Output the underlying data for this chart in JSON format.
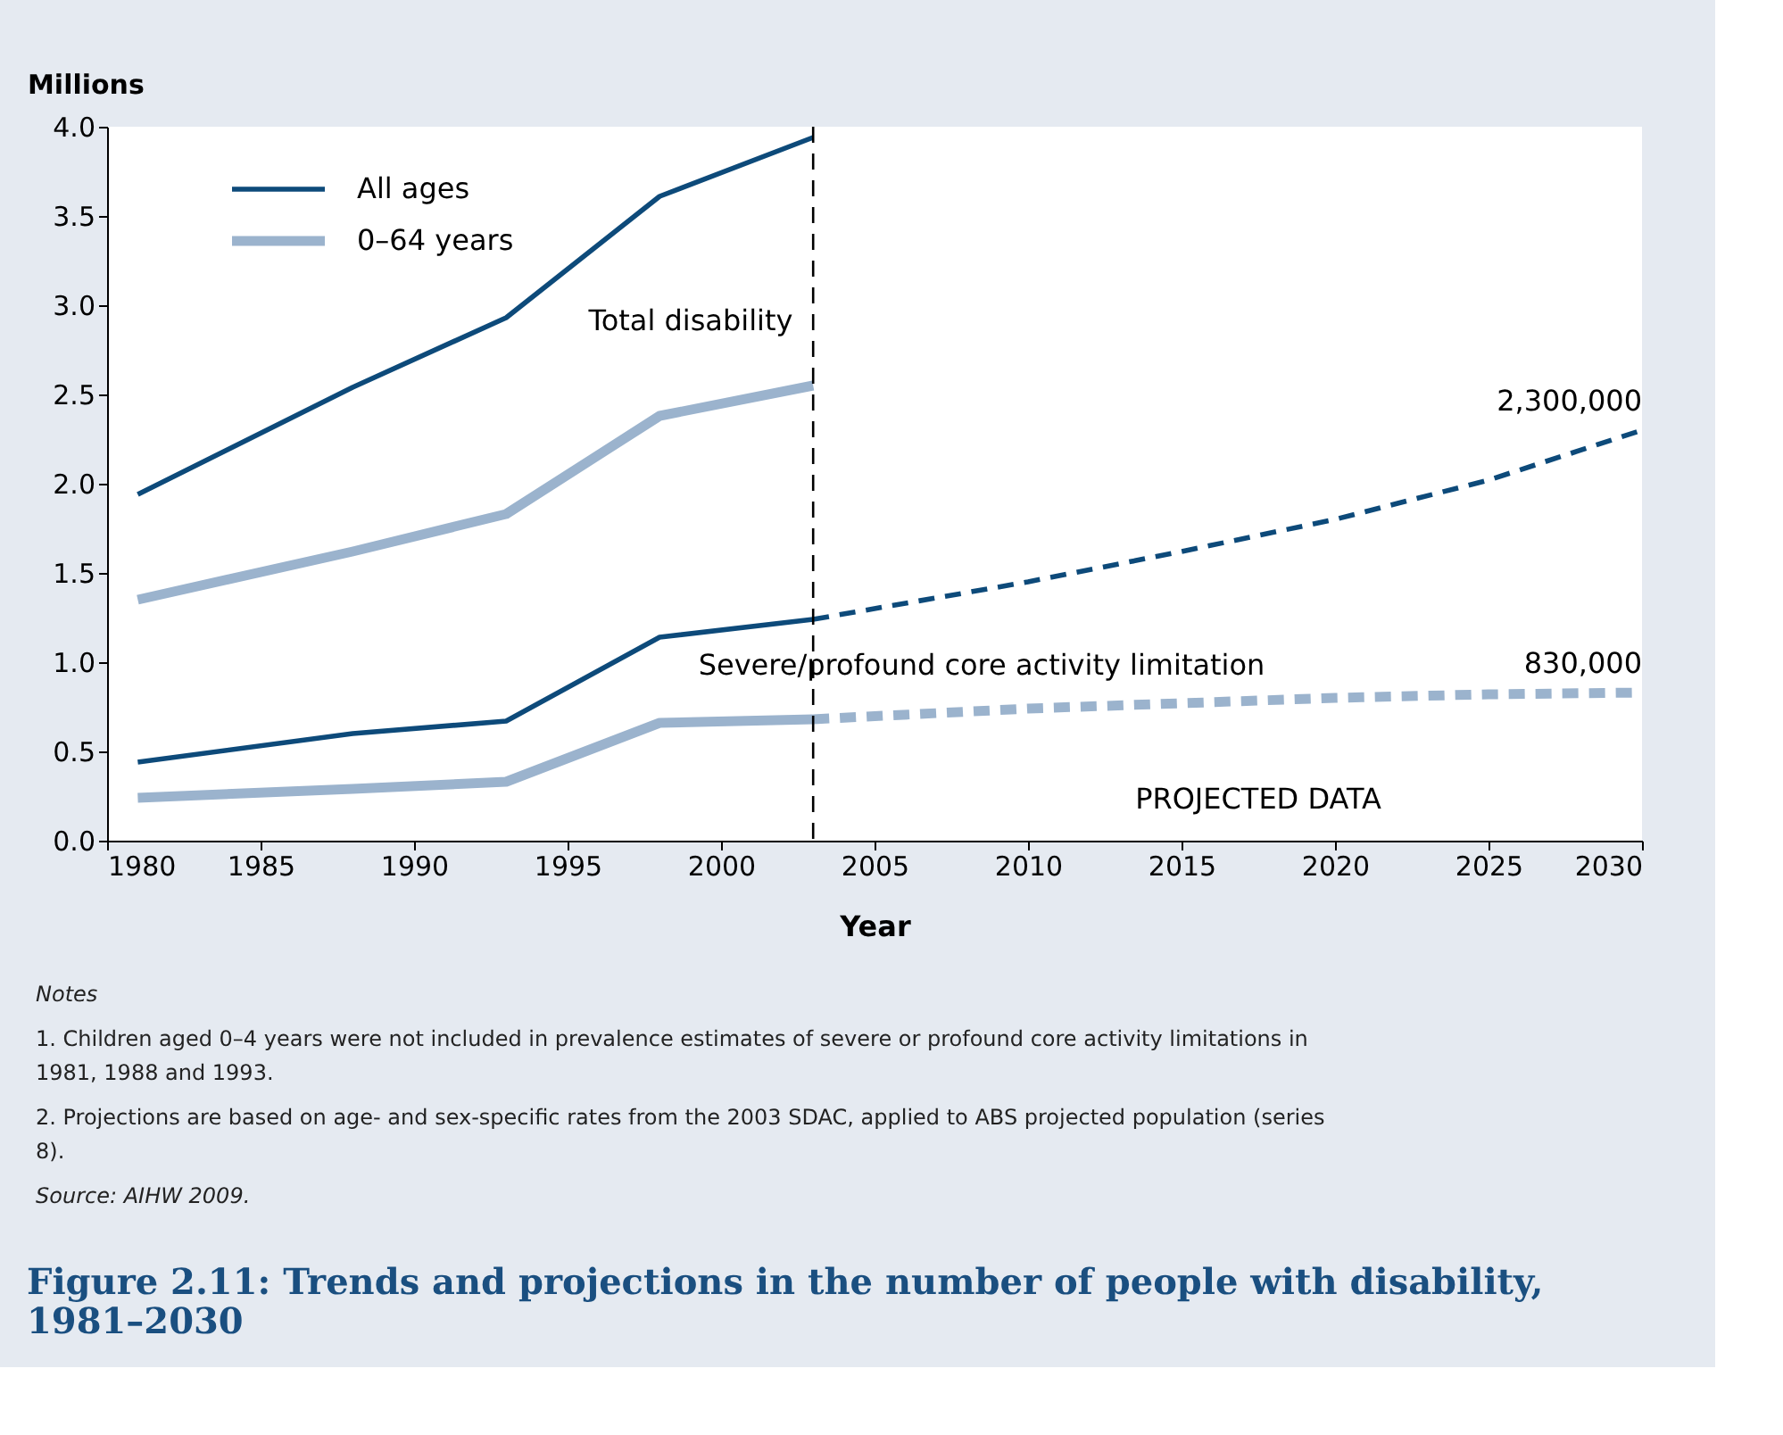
{
  "chart_data": {
    "type": "line",
    "title": "Figure 2.11: Trends and projections in the number of people with disability, 1981–2030",
    "xlabel": "Year",
    "ylabel": "Millions",
    "xlim": [
      1980,
      2030
    ],
    "xticks": [
      1980,
      1985,
      1990,
      1995,
      2000,
      2005,
      2010,
      2015,
      2020,
      2025,
      2030
    ],
    "ylim": [
      0,
      4
    ],
    "yticks": [
      {
        "value": 0,
        "label": "0.0"
      },
      0.5,
      {
        "value": 1,
        "label": "1.0"
      },
      1.5,
      {
        "value": 2,
        "label": "2.0"
      },
      2.5,
      {
        "value": 3,
        "label": "3.0"
      },
      3.5,
      {
        "value": 4,
        "label": "4.0"
      }
    ],
    "grid": false,
    "legend": "top left",
    "marker": "none",
    "series": [
      {
        "name": "All ages",
        "color": "#0d4a7a",
        "x": [
          1981,
          1988,
          1993,
          1998,
          2003
        ],
        "values": [
          1.94,
          2.54,
          2.93,
          3.61,
          3.94
        ]
      },
      {
        "name": "0–64 years",
        "color": "#9bb3cd",
        "x": [
          1981,
          1988,
          1993,
          1998,
          2003
        ],
        "values": [
          1.35,
          1.62,
          1.83,
          2.38,
          2.55
        ]
      },
      {
        "color": "#0d4a7a",
        "x": [
          1981,
          1988,
          1993,
          1998,
          2003
        ],
        "values": [
          0.44,
          0.6,
          0.67,
          1.14,
          1.24
        ]
      },
      {
        "color": "#9bb3cd",
        "x": [
          1981,
          1988,
          1993,
          1998,
          2003
        ],
        "values": [
          0.24,
          0.29,
          0.33,
          0.66,
          0.68
        ]
      },
      {
        "color": "#0d4a7a",
        "line_style": "dashed",
        "x": [
          2003,
          2010,
          2015,
          2020,
          2025,
          2030
        ],
        "values": [
          1.24,
          1.45,
          1.62,
          1.8,
          2.02,
          2.3
        ]
      },
      {
        "color": "#9bb3cd",
        "line_style": "dashed",
        "x": [
          2003,
          2010,
          2015,
          2020,
          2025,
          2030
        ],
        "values": [
          0.68,
          0.74,
          0.77,
          0.8,
          0.82,
          0.83
        ]
      }
    ],
    "ref_lines": [
      {
        "axis": "x",
        "value": 2003,
        "color": "#000000",
        "line_style": "dashed"
      }
    ],
    "annotations": [
      "Total disability",
      "Severe/profound core activity limitation",
      "PROJECTED DATA",
      {
        "text": "2,300,000",
        "x": 2030,
        "y": 2.3
      },
      {
        "text": "830,000",
        "x": 2030,
        "y": 0.83
      },
      "Notes",
      "1.   Children aged 0–4 years were not included in prevalence estimates of severe or profound core activity limitations in 1981, 1988 and 1993.",
      "2.   Projections are based on age- and sex-specific rates from the 2003 SDAC, applied to ABS projected population (series 8).",
      "Source: AIHW 2009."
    ]
  }
}
